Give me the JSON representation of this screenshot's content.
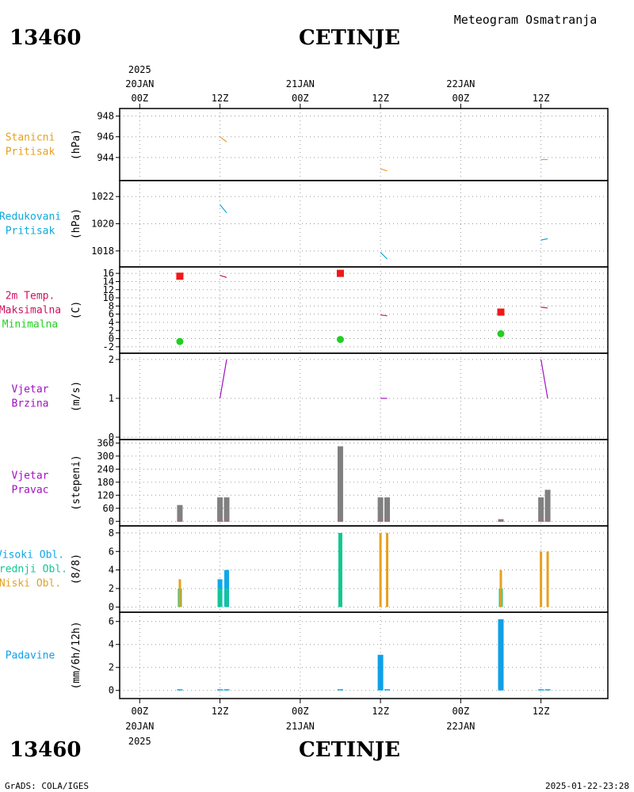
{
  "header": {
    "station_id": "13460",
    "station_name": "CETINJE",
    "title": "Meteogram Osmatranja",
    "footer_left": "GrADS: COLA/IGES",
    "footer_right": "2025-01-22-23:28"
  },
  "time_axis": {
    "year": "2025",
    "ticks": [
      {
        "t": 0,
        "hour": "00Z",
        "date": "20JAN"
      },
      {
        "t": 12,
        "hour": "12Z",
        "date": ""
      },
      {
        "t": 24,
        "hour": "00Z",
        "date": "21JAN"
      },
      {
        "t": 36,
        "hour": "12Z",
        "date": ""
      },
      {
        "t": 48,
        "hour": "00Z",
        "date": "22JAN"
      },
      {
        "t": 60,
        "hour": "12Z",
        "date": ""
      }
    ],
    "t_range": [
      -3,
      70
    ]
  },
  "colors": {
    "station_pressure": "#e6a020",
    "reduced_pressure": "#10a8d8",
    "temp_label": "#d01060",
    "tmax": "#f01818",
    "tmin": "#20d020",
    "wind": "#a010c0",
    "wind_dir_bar": "#808080",
    "cloud_high": "#10a8e8",
    "cloud_mid": "#10c890",
    "cloud_low": "#e6a020",
    "precip": "#10a0e8"
  },
  "chart_data": [
    {
      "type": "line",
      "panel": "stanicni_pritisak",
      "labels": [
        "Stanicni",
        "Pritisak"
      ],
      "unit": "(hPa)",
      "ylim": [
        942,
        948.5
      ],
      "yticks": [
        944,
        946,
        948
      ],
      "segments": [
        {
          "x": [
            12.0,
            13.0
          ],
          "y": [
            946.0,
            945.5
          ]
        },
        {
          "x": [
            36.0,
            37.0
          ],
          "y": [
            942.9,
            942.7
          ]
        },
        {
          "x": [
            60.0,
            61.0
          ],
          "y": [
            943.8,
            943.8
          ]
        }
      ]
    },
    {
      "type": "line",
      "panel": "redukovani_pritisak",
      "labels": [
        "Redukovani",
        "Pritisak"
      ],
      "unit": "(hPa)",
      "ylim": [
        1017,
        1023
      ],
      "yticks": [
        1018,
        1020,
        1022
      ],
      "segments": [
        {
          "x": [
            12.0,
            13.0
          ],
          "y": [
            1021.4,
            1020.8
          ]
        },
        {
          "x": [
            36.0,
            37.0
          ],
          "y": [
            1017.9,
            1017.4
          ]
        },
        {
          "x": [
            60.0,
            61.0
          ],
          "y": [
            1018.8,
            1018.9
          ]
        }
      ]
    },
    {
      "type": "line",
      "panel": "temperatura",
      "labels": [
        "2m Temp.",
        "Maksimalna",
        "Minimalna"
      ],
      "unit": "(C)",
      "ylim": [
        -3,
        17
      ],
      "yticks": [
        -2,
        0,
        2,
        4,
        6,
        8,
        10,
        12,
        14,
        16
      ],
      "ytick_labels": [
        "-2",
        "0",
        "2",
        "4",
        "6",
        "8",
        "10",
        "12",
        "14",
        "16"
      ],
      "temp_segments": [
        {
          "x": [
            12.0,
            13.0
          ],
          "y": [
            15.5,
            15.0
          ]
        },
        {
          "x": [
            36.0,
            37.0
          ],
          "y": [
            5.8,
            5.6
          ]
        },
        {
          "x": [
            60.0,
            61.0
          ],
          "y": [
            7.7,
            7.5
          ]
        }
      ],
      "tmax": [
        {
          "x": 6,
          "y": 15.3
        },
        {
          "x": 30,
          "y": 16.0
        },
        {
          "x": 54,
          "y": 6.5
        }
      ],
      "tmin": [
        {
          "x": 6,
          "y": -0.7
        },
        {
          "x": 30,
          "y": -0.2
        },
        {
          "x": 54,
          "y": 1.2
        }
      ]
    },
    {
      "type": "line",
      "panel": "vjetar_brzina",
      "labels": [
        "Vjetar",
        "Brzina"
      ],
      "unit": "(m/s)",
      "ylim": [
        0,
        2.1
      ],
      "yticks": [
        0,
        1,
        2
      ],
      "segments": [
        {
          "x": [
            12.0,
            13.0
          ],
          "y": [
            1.0,
            2.0
          ]
        },
        {
          "x": [
            36.0,
            37.0
          ],
          "y": [
            1.0,
            1.0
          ]
        },
        {
          "x": [
            60.0,
            61.0
          ],
          "y": [
            2.0,
            1.0
          ]
        }
      ]
    },
    {
      "type": "bar",
      "panel": "vjetar_pravac",
      "labels": [
        "Vjetar",
        "Pravac"
      ],
      "unit": "(stepeni)",
      "ylim": [
        -10,
        365
      ],
      "yticks": [
        0,
        60,
        120,
        180,
        240,
        300,
        360
      ],
      "bars": [
        {
          "x": 6,
          "value": 75
        },
        {
          "x": 12,
          "value": 110
        },
        {
          "x": 13,
          "value": 110
        },
        {
          "x": 30,
          "value": 345
        },
        {
          "x": 36,
          "value": 110
        },
        {
          "x": 37,
          "value": 110
        },
        {
          "x": 54,
          "value": 10
        },
        {
          "x": 60,
          "value": 110
        },
        {
          "x": 61,
          "value": 145
        }
      ]
    },
    {
      "type": "bar",
      "panel": "oblacnost",
      "labels": [
        "Visoki Obl.",
        "Srednji Obl.",
        "Niski Obl."
      ],
      "unit": "(8/8)",
      "ylim": [
        -0.3,
        8.5
      ],
      "yticks": [
        0,
        2,
        4,
        6,
        8
      ],
      "series": [
        {
          "name": "Visoki Obl.",
          "bars": [
            {
              "x": 12,
              "value": 3
            },
            {
              "x": 13,
              "value": 4
            }
          ]
        },
        {
          "name": "Srednji Obl.",
          "bars": [
            {
              "x": 6,
              "value": 2
            },
            {
              "x": 12,
              "value": 2
            },
            {
              "x": 13,
              "value": 2
            },
            {
              "x": 30,
              "value": 8
            },
            {
              "x": 54,
              "value": 2
            }
          ]
        },
        {
          "name": "Niski Obl.",
          "bars": [
            {
              "x": 6,
              "value": 3
            },
            {
              "x": 36,
              "value": 8
            },
            {
              "x": 37,
              "value": 8
            },
            {
              "x": 54,
              "value": 4
            },
            {
              "x": 60,
              "value": 6
            },
            {
              "x": 61,
              "value": 6
            }
          ]
        }
      ]
    },
    {
      "type": "bar",
      "panel": "padavine",
      "labels": [
        "Padavine"
      ],
      "unit": "(mm/6h/12h)",
      "ylim": [
        -0.5,
        6.6
      ],
      "yticks": [
        0,
        2,
        4,
        6
      ],
      "bars": [
        {
          "x": 6,
          "value": 0.05
        },
        {
          "x": 12,
          "value": 0.05
        },
        {
          "x": 13,
          "value": 0.05
        },
        {
          "x": 30,
          "value": 0.05
        },
        {
          "x": 36,
          "value": 3.1
        },
        {
          "x": 37,
          "value": 0.05
        },
        {
          "x": 54,
          "value": 6.2
        },
        {
          "x": 60,
          "value": 0.05
        },
        {
          "x": 61,
          "value": 0.05
        }
      ]
    }
  ]
}
